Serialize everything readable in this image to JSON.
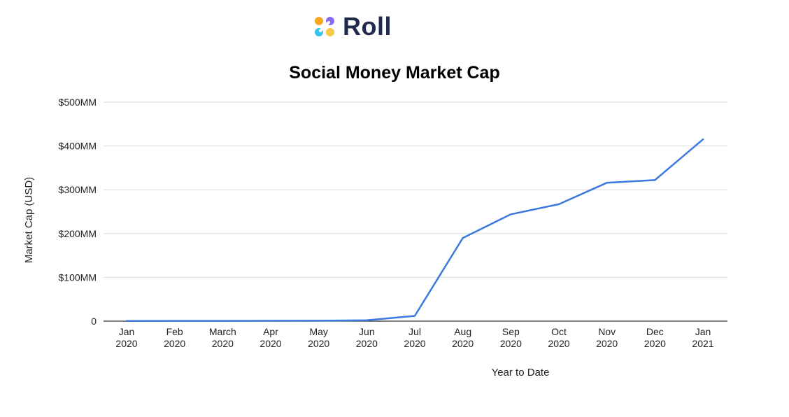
{
  "brand": {
    "name": "Roll"
  },
  "colors": {
    "line": "#3c78e0",
    "grid": "#d9d9d9",
    "axis": "#333333",
    "logo_orange": "#f5a623",
    "logo_purple": "#8b6cf0",
    "logo_cyan": "#36c5f0",
    "logo_yellow": "#f7c948"
  },
  "chart_data": {
    "type": "line",
    "title": "Social Money Market Cap",
    "xlabel": "Year to Date",
    "ylabel": "Market Cap (USD)",
    "ylim": [
      0,
      500
    ],
    "y_unit": "USD millions",
    "y_ticks": [
      {
        "value": 0,
        "label": "0"
      },
      {
        "value": 100,
        "label": "$100MM"
      },
      {
        "value": 200,
        "label": "$200MM"
      },
      {
        "value": 300,
        "label": "$300MM"
      },
      {
        "value": 400,
        "label": "$400MM"
      },
      {
        "value": 500,
        "label": "$500MM"
      }
    ],
    "categories": [
      {
        "month": "Jan",
        "year": "2020"
      },
      {
        "month": "Feb",
        "year": "2020"
      },
      {
        "month": "March",
        "year": "2020"
      },
      {
        "month": "Apr",
        "year": "2020"
      },
      {
        "month": "May",
        "year": "2020"
      },
      {
        "month": "Jun",
        "year": "2020"
      },
      {
        "month": "Jul",
        "year": "2020"
      },
      {
        "month": "Aug",
        "year": "2020"
      },
      {
        "month": "Sep",
        "year": "2020"
      },
      {
        "month": "Oct",
        "year": "2020"
      },
      {
        "month": "Nov",
        "year": "2020"
      },
      {
        "month": "Dec",
        "year": "2020"
      },
      {
        "month": "Jan",
        "year": "2021"
      }
    ],
    "series": [
      {
        "values": [
          0.5,
          0.6,
          0.7,
          0.8,
          1,
          2,
          12,
          190,
          244,
          267,
          316,
          322,
          415
        ]
      }
    ],
    "grid": true,
    "legend": "none"
  }
}
